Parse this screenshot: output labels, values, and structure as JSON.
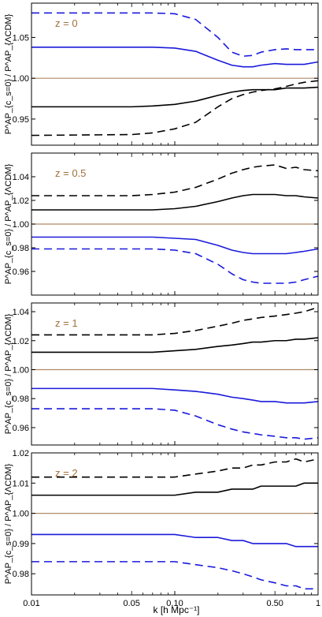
{
  "figure": {
    "xlabel": "k [h Mpc⁻¹]",
    "colors": {
      "black": "#000000",
      "blue": "#1a1adb",
      "reference": "#b08a68",
      "label": "#a0703c",
      "axis": "#000000"
    }
  },
  "chart_data": [
    {
      "type": "line",
      "panel_label": "z = 0",
      "ylabel": "P^AP_{c_s=0} / P^AP_{ΛCDM}",
      "xscale": "log",
      "xlim": [
        0.01,
        1.0
      ],
      "ylim": [
        0.918,
        1.092
      ],
      "yticks": [
        0.95,
        1.0,
        1.05
      ],
      "ytick_labels": [
        "0.95",
        "1.00",
        "1.05"
      ],
      "reference": 1.0,
      "series": [
        {
          "color": "blue",
          "style": "dashed",
          "x": [
            0.01,
            0.05,
            0.07,
            0.1,
            0.14,
            0.2,
            0.25,
            0.3,
            0.35,
            0.4,
            0.5,
            0.6,
            0.7,
            0.8,
            1.0
          ],
          "y": [
            1.08,
            1.08,
            1.08,
            1.079,
            1.072,
            1.05,
            1.032,
            1.027,
            1.028,
            1.032,
            1.035,
            1.036,
            1.035,
            1.035,
            1.035
          ]
        },
        {
          "color": "blue",
          "style": "solid",
          "x": [
            0.01,
            0.05,
            0.07,
            0.1,
            0.14,
            0.2,
            0.25,
            0.3,
            0.35,
            0.4,
            0.5,
            0.6,
            0.7,
            0.8,
            1.0
          ],
          "y": [
            1.038,
            1.038,
            1.038,
            1.037,
            1.033,
            1.022,
            1.016,
            1.014,
            1.014,
            1.016,
            1.018,
            1.017,
            1.017,
            1.017,
            1.02
          ]
        },
        {
          "color": "black",
          "style": "solid",
          "x": [
            0.01,
            0.05,
            0.07,
            0.1,
            0.14,
            0.2,
            0.25,
            0.3,
            0.35,
            0.4,
            0.5,
            0.6,
            0.7,
            0.8,
            1.0
          ],
          "y": [
            0.965,
            0.965,
            0.966,
            0.968,
            0.972,
            0.979,
            0.983,
            0.985,
            0.986,
            0.986,
            0.986,
            0.988,
            0.988,
            0.988,
            0.989
          ]
        },
        {
          "color": "black",
          "style": "dashed",
          "x": [
            0.01,
            0.05,
            0.07,
            0.1,
            0.14,
            0.2,
            0.25,
            0.3,
            0.35,
            0.4,
            0.5,
            0.6,
            0.7,
            0.8,
            1.0
          ],
          "y": [
            0.93,
            0.931,
            0.933,
            0.938,
            0.946,
            0.965,
            0.975,
            0.98,
            0.983,
            0.985,
            0.987,
            0.99,
            0.993,
            0.995,
            0.997
          ]
        },
        {
          "color": "reference",
          "style": "solid",
          "x": [
            0.01,
            1.0
          ],
          "y": [
            1.0,
            1.0
          ]
        }
      ]
    },
    {
      "type": "line",
      "panel_label": "z = 0.5",
      "ylabel": "P^AP_{c_s=0} / P^AP_{ΛCDM}",
      "xscale": "log",
      "xlim": [
        0.01,
        1.0
      ],
      "ylim": [
        0.94,
        1.06
      ],
      "yticks": [
        0.96,
        0.98,
        1.0,
        1.02,
        1.04
      ],
      "ytick_labels": [
        "0.96",
        "0.98",
        "1.00",
        "1.02",
        "1.04"
      ],
      "reference": 1.0,
      "series": [
        {
          "color": "black",
          "style": "dashed",
          "x": [
            0.01,
            0.05,
            0.07,
            0.1,
            0.14,
            0.2,
            0.25,
            0.3,
            0.35,
            0.4,
            0.5,
            0.6,
            0.7,
            0.8,
            1.0
          ],
          "y": [
            1.024,
            1.024,
            1.025,
            1.027,
            1.031,
            1.038,
            1.043,
            1.046,
            1.048,
            1.049,
            1.05,
            1.047,
            1.048,
            1.046,
            1.045
          ]
        },
        {
          "color": "black",
          "style": "solid",
          "x": [
            0.01,
            0.05,
            0.07,
            0.1,
            0.14,
            0.2,
            0.25,
            0.3,
            0.35,
            0.4,
            0.5,
            0.6,
            0.7,
            0.8,
            1.0
          ],
          "y": [
            1.012,
            1.012,
            1.012,
            1.013,
            1.015,
            1.019,
            1.022,
            1.024,
            1.025,
            1.025,
            1.025,
            1.024,
            1.024,
            1.023,
            1.022
          ]
        },
        {
          "color": "blue",
          "style": "solid",
          "x": [
            0.01,
            0.05,
            0.07,
            0.1,
            0.14,
            0.2,
            0.25,
            0.3,
            0.35,
            0.4,
            0.5,
            0.6,
            0.7,
            0.8,
            1.0
          ],
          "y": [
            0.989,
            0.989,
            0.989,
            0.988,
            0.987,
            0.982,
            0.978,
            0.976,
            0.975,
            0.975,
            0.975,
            0.975,
            0.976,
            0.977,
            0.979
          ]
        },
        {
          "color": "blue",
          "style": "dashed",
          "x": [
            0.01,
            0.05,
            0.07,
            0.1,
            0.14,
            0.2,
            0.25,
            0.3,
            0.35,
            0.4,
            0.5,
            0.6,
            0.7,
            0.8,
            1.0
          ],
          "y": [
            0.979,
            0.979,
            0.979,
            0.978,
            0.975,
            0.966,
            0.958,
            0.953,
            0.951,
            0.95,
            0.95,
            0.95,
            0.951,
            0.953,
            0.956
          ]
        },
        {
          "color": "reference",
          "style": "solid",
          "x": [
            0.01,
            1.0
          ],
          "y": [
            1.0,
            1.0
          ]
        }
      ]
    },
    {
      "type": "line",
      "panel_label": "z = 1",
      "ylabel": "P^AP_{c_s=0} / P^AP_{ΛCDM}",
      "xscale": "log",
      "xlim": [
        0.01,
        1.0
      ],
      "ylim": [
        0.948,
        1.046
      ],
      "yticks": [
        0.96,
        0.98,
        1.0,
        1.02,
        1.04
      ],
      "ytick_labels": [
        "0.96",
        "0.98",
        "1.00",
        "1.02",
        "1.04"
      ],
      "reference": 1.0,
      "series": [
        {
          "color": "black",
          "style": "dashed",
          "x": [
            0.01,
            0.05,
            0.07,
            0.1,
            0.14,
            0.2,
            0.25,
            0.3,
            0.35,
            0.4,
            0.5,
            0.6,
            0.7,
            0.8,
            1.0
          ],
          "y": [
            1.024,
            1.024,
            1.024,
            1.025,
            1.027,
            1.03,
            1.032,
            1.034,
            1.035,
            1.036,
            1.037,
            1.038,
            1.039,
            1.04,
            1.043
          ]
        },
        {
          "color": "black",
          "style": "solid",
          "x": [
            0.01,
            0.05,
            0.07,
            0.1,
            0.14,
            0.2,
            0.25,
            0.3,
            0.35,
            0.4,
            0.5,
            0.6,
            0.7,
            0.8,
            1.0
          ],
          "y": [
            1.012,
            1.012,
            1.012,
            1.013,
            1.014,
            1.016,
            1.017,
            1.018,
            1.019,
            1.019,
            1.02,
            1.02,
            1.021,
            1.021,
            1.022
          ]
        },
        {
          "color": "blue",
          "style": "solid",
          "x": [
            0.01,
            0.05,
            0.07,
            0.1,
            0.14,
            0.2,
            0.25,
            0.3,
            0.35,
            0.4,
            0.5,
            0.6,
            0.7,
            0.8,
            1.0
          ],
          "y": [
            0.987,
            0.987,
            0.987,
            0.986,
            0.985,
            0.983,
            0.981,
            0.98,
            0.979,
            0.978,
            0.978,
            0.977,
            0.977,
            0.977,
            0.978
          ]
        },
        {
          "color": "blue",
          "style": "dashed",
          "x": [
            0.01,
            0.05,
            0.07,
            0.1,
            0.14,
            0.2,
            0.25,
            0.3,
            0.35,
            0.4,
            0.5,
            0.6,
            0.7,
            0.8,
            1.0
          ],
          "y": [
            0.973,
            0.973,
            0.973,
            0.972,
            0.968,
            0.962,
            0.959,
            0.957,
            0.956,
            0.955,
            0.954,
            0.953,
            0.953,
            0.952,
            0.953
          ]
        },
        {
          "color": "reference",
          "style": "solid",
          "x": [
            0.01,
            1.0
          ],
          "y": [
            1.0,
            1.0
          ]
        }
      ]
    },
    {
      "type": "line",
      "panel_label": "z = 2",
      "ylabel": "P^AP_{c_s=0} / P^AP_{ΛCDM}",
      "xscale": "log",
      "xlim": [
        0.01,
        1.0
      ],
      "xticks": [
        0.01,
        0.05,
        0.1,
        0.5,
        1.0
      ],
      "xtick_labels": [
        "0.01",
        "0.05",
        "0.10",
        "0.50",
        "1"
      ],
      "ylim": [
        0.973,
        1.02
      ],
      "yticks": [
        0.98,
        0.99,
        1.0,
        1.01,
        1.02
      ],
      "ytick_labels": [
        "0.98",
        "0.99",
        "1.00",
        "1.01",
        "1.02"
      ],
      "reference": 1.0,
      "series": [
        {
          "color": "black",
          "style": "dashed",
          "x": [
            0.01,
            0.05,
            0.07,
            0.1,
            0.14,
            0.2,
            0.25,
            0.3,
            0.35,
            0.4,
            0.5,
            0.6,
            0.7,
            0.8,
            1.0
          ],
          "y": [
            1.012,
            1.012,
            1.012,
            1.012,
            1.013,
            1.014,
            1.015,
            1.015,
            1.016,
            1.016,
            1.017,
            1.017,
            1.018,
            1.017,
            1.018
          ]
        },
        {
          "color": "black",
          "style": "solid",
          "x": [
            0.01,
            0.05,
            0.07,
            0.1,
            0.14,
            0.2,
            0.25,
            0.3,
            0.35,
            0.4,
            0.5,
            0.6,
            0.7,
            0.8,
            1.0
          ],
          "y": [
            1.006,
            1.006,
            1.006,
            1.006,
            1.007,
            1.007,
            1.008,
            1.008,
            1.008,
            1.009,
            1.009,
            1.009,
            1.009,
            1.01,
            1.01
          ]
        },
        {
          "color": "blue",
          "style": "solid",
          "x": [
            0.01,
            0.05,
            0.07,
            0.1,
            0.14,
            0.2,
            0.25,
            0.3,
            0.35,
            0.4,
            0.5,
            0.6,
            0.7,
            0.8,
            1.0
          ],
          "y": [
            0.993,
            0.993,
            0.993,
            0.993,
            0.992,
            0.992,
            0.991,
            0.991,
            0.99,
            0.99,
            0.99,
            0.99,
            0.989,
            0.989,
            0.989
          ]
        },
        {
          "color": "blue",
          "style": "dashed",
          "x": [
            0.01,
            0.05,
            0.07,
            0.1,
            0.14,
            0.2,
            0.25,
            0.3,
            0.35,
            0.4,
            0.5,
            0.6,
            0.7,
            0.8,
            1.0
          ],
          "y": [
            0.984,
            0.984,
            0.984,
            0.984,
            0.983,
            0.982,
            0.981,
            0.98,
            0.979,
            0.978,
            0.977,
            0.976,
            0.976,
            0.975,
            0.975
          ]
        },
        {
          "color": "reference",
          "style": "solid",
          "x": [
            0.01,
            1.0
          ],
          "y": [
            1.0,
            1.0
          ]
        }
      ]
    }
  ]
}
